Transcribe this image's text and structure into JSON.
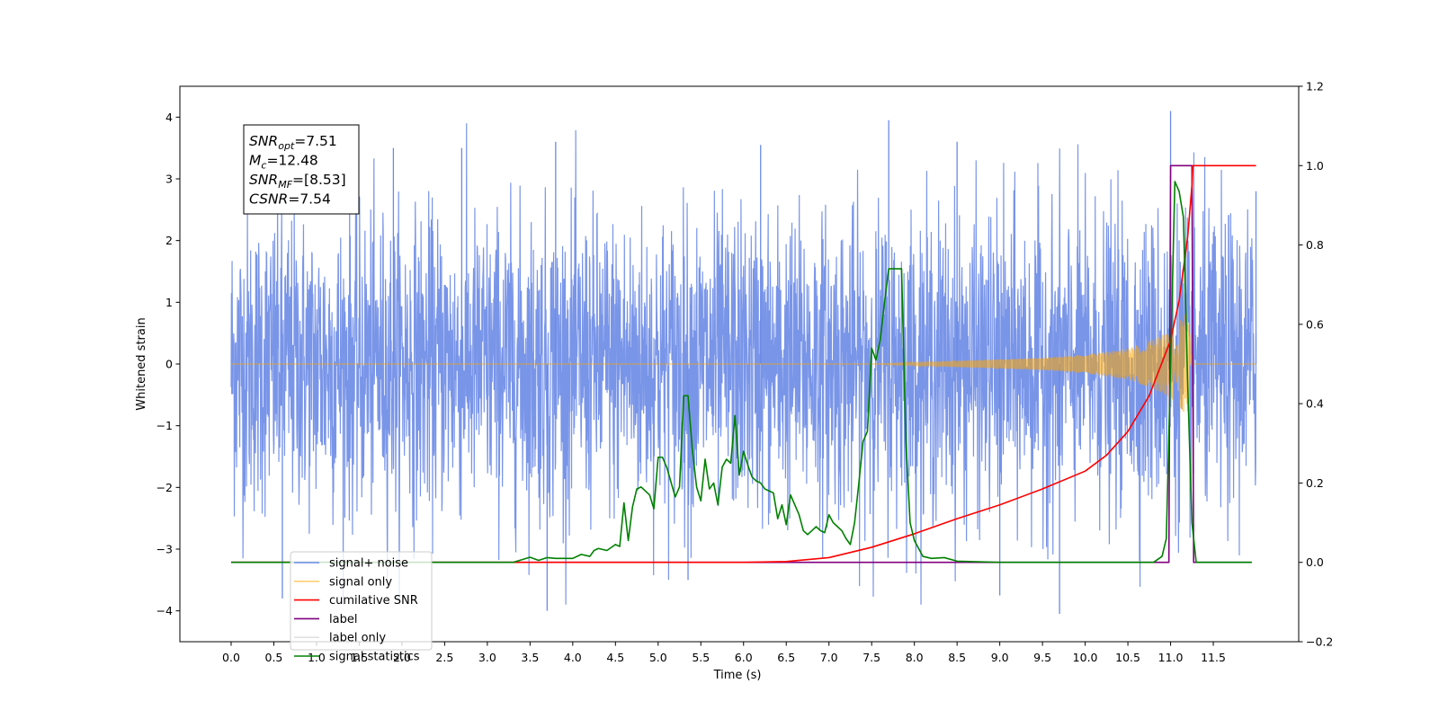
{
  "chart_data": {
    "type": "line",
    "xlabel": "Time (s)",
    "ylabel": "Whitened strain",
    "y2label": "",
    "xlim": [
      -0.6,
      12.5
    ],
    "ylim": [
      -4.5,
      4.5
    ],
    "y2lim": [
      -0.2,
      1.2
    ],
    "x_ticks": [
      0.0,
      0.5,
      1.0,
      1.5,
      2.0,
      2.5,
      3.0,
      3.5,
      4.0,
      4.5,
      5.0,
      5.5,
      6.0,
      6.5,
      7.0,
      7.5,
      8.0,
      8.5,
      9.0,
      9.5,
      10.0,
      10.5,
      11.0,
      11.5
    ],
    "x_tick_labels": [
      "0.0",
      "0.5",
      "1.0",
      "1.5",
      "2.0",
      "2.5",
      "3.0",
      "3.5",
      "4.0",
      "4.5",
      "5.0",
      "5.5",
      "6.0",
      "6.5",
      "7.0",
      "7.5",
      "8.0",
      "8.5",
      "9.0",
      "9.5",
      "10.0",
      "10.5",
      "11.0",
      "11.5"
    ],
    "y_ticks": [
      -4,
      -3,
      -2,
      -1,
      0,
      1,
      2,
      3,
      4
    ],
    "y_tick_labels": [
      "−4",
      "−3",
      "−2",
      "−1",
      "0",
      "1",
      "2",
      "3",
      "4"
    ],
    "y2_ticks": [
      -0.2,
      0.0,
      0.2,
      0.4,
      0.6,
      0.8,
      1.0,
      1.2
    ],
    "y2_tick_labels": [
      "−0.2",
      "0.0",
      "0.2",
      "0.4",
      "0.6",
      "0.8",
      "1.0",
      "1.2"
    ],
    "grid": false,
    "legend_position": "lower-left",
    "annotation": {
      "lines": [
        {
          "base": "SNR",
          "sub": "opt",
          "value": "=7.51"
        },
        {
          "base": "M",
          "sub": "c",
          "value": "=12.48"
        },
        {
          "base": "SNR",
          "sub": "MF",
          "value": "=[8.53]"
        },
        {
          "base": "CSNR",
          "sub": "",
          "value": "=7.54"
        }
      ]
    },
    "series": [
      {
        "name": "signal+ noise",
        "axis": "left",
        "color": "#6a8ae6",
        "kind": "noise",
        "x_range": [
          0.0,
          12.0
        ],
        "envelope_typical": [
          -2.5,
          2.5
        ],
        "max": 4.1,
        "min": -4.1
      },
      {
        "name": "signal only",
        "axis": "left",
        "color": "#ffa500",
        "kind": "chirp",
        "x_range": [
          0.0,
          11.26
        ],
        "amplitude_points": [
          [
            0.0,
            0.0
          ],
          [
            7.5,
            0.0
          ],
          [
            8.5,
            0.05
          ],
          [
            9.5,
            0.1
          ],
          [
            10.0,
            0.15
          ],
          [
            10.5,
            0.25
          ],
          [
            10.8,
            0.4
          ],
          [
            11.0,
            0.55
          ],
          [
            11.2,
            0.85
          ],
          [
            11.26,
            0.0
          ]
        ]
      },
      {
        "name": "cumilative SNR",
        "axis": "right",
        "color": "#ff0000",
        "x": [
          0.0,
          6.0,
          6.5,
          7.0,
          7.25,
          7.5,
          7.75,
          8.0,
          8.5,
          9.0,
          9.5,
          10.0,
          10.25,
          10.5,
          10.75,
          11.0,
          11.1,
          11.2,
          11.25,
          11.26,
          12.0
        ],
        "y": [
          0.0,
          0.0,
          0.002,
          0.012,
          0.025,
          0.038,
          0.055,
          0.072,
          0.11,
          0.145,
          0.185,
          0.23,
          0.27,
          0.33,
          0.42,
          0.56,
          0.66,
          0.82,
          0.95,
          1.0,
          1.0
        ]
      },
      {
        "name": "label",
        "axis": "right",
        "color": "#800080",
        "x": [
          0.0,
          10.98,
          11.0,
          11.25,
          11.27,
          11.95
        ],
        "y": [
          0.0,
          0.0,
          1.0,
          1.0,
          0.0,
          0.0
        ]
      },
      {
        "name": "label only",
        "axis": "right",
        "color": "#e0e0e0",
        "x": [],
        "y": []
      },
      {
        "name": "signal statistics",
        "axis": "right",
        "color": "#008000",
        "x": [
          0.0,
          3.3,
          3.5,
          3.6,
          3.7,
          3.8,
          4.0,
          4.1,
          4.2,
          4.25,
          4.3,
          4.4,
          4.5,
          4.55,
          4.6,
          4.65,
          4.7,
          4.75,
          4.8,
          4.9,
          4.95,
          5.0,
          5.05,
          5.1,
          5.2,
          5.25,
          5.3,
          5.35,
          5.4,
          5.45,
          5.5,
          5.55,
          5.6,
          5.65,
          5.7,
          5.75,
          5.8,
          5.85,
          5.9,
          5.95,
          6.0,
          6.05,
          6.1,
          6.15,
          6.2,
          6.25,
          6.3,
          6.35,
          6.4,
          6.45,
          6.5,
          6.55,
          6.6,
          6.65,
          6.7,
          6.75,
          6.8,
          6.85,
          6.9,
          6.95,
          7.0,
          7.05,
          7.1,
          7.15,
          7.2,
          7.25,
          7.3,
          7.35,
          7.4,
          7.45,
          7.5,
          7.55,
          7.6,
          7.65,
          7.7,
          7.75,
          7.8,
          7.85,
          7.9,
          7.95,
          8.0,
          8.1,
          8.2,
          8.35,
          8.5,
          9.0,
          9.5,
          10.0,
          10.8,
          10.9,
          10.95,
          11.0,
          11.05,
          11.1,
          11.15,
          11.2,
          11.25,
          11.3,
          11.95
        ],
        "y": [
          0.0,
          0.0,
          0.013,
          0.005,
          0.012,
          0.01,
          0.01,
          0.02,
          0.015,
          0.03,
          0.035,
          0.03,
          0.045,
          0.04,
          0.15,
          0.055,
          0.14,
          0.185,
          0.19,
          0.17,
          0.135,
          0.265,
          0.265,
          0.24,
          0.165,
          0.19,
          0.42,
          0.42,
          0.285,
          0.19,
          0.155,
          0.26,
          0.185,
          0.2,
          0.145,
          0.24,
          0.26,
          0.25,
          0.37,
          0.22,
          0.28,
          0.245,
          0.215,
          0.205,
          0.2,
          0.185,
          0.18,
          0.175,
          0.11,
          0.145,
          0.095,
          0.17,
          0.145,
          0.12,
          0.08,
          0.07,
          0.08,
          0.09,
          0.08,
          0.075,
          0.12,
          0.1,
          0.09,
          0.08,
          0.06,
          0.045,
          0.1,
          0.2,
          0.305,
          0.33,
          0.54,
          0.51,
          0.56,
          0.655,
          0.74,
          0.74,
          0.74,
          0.74,
          0.31,
          0.1,
          0.055,
          0.015,
          0.01,
          0.012,
          0.003,
          0.0,
          0.0,
          0.0,
          0.0,
          0.015,
          0.06,
          0.5,
          0.96,
          0.935,
          0.87,
          0.45,
          0.1,
          0.0,
          0.0
        ]
      }
    ]
  }
}
